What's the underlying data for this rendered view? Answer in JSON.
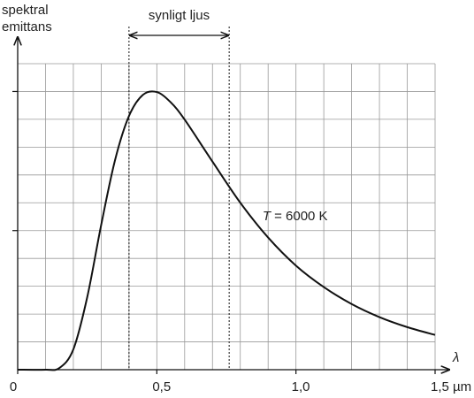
{
  "chart_data": {
    "type": "line",
    "ylabel": [
      "spektral",
      "emittans"
    ],
    "xlabel": "λ",
    "band_label": "synligt ljus",
    "band": [
      0.4,
      0.76
    ],
    "annotation": {
      "symbol": "T",
      "text": "= 6000 K",
      "x": 0.88,
      "y": 5.5
    },
    "x": [
      0,
      0.1,
      0.15,
      0.2,
      0.25,
      0.3,
      0.35,
      0.4,
      0.45,
      0.5,
      0.55,
      0.6,
      0.7,
      0.8,
      0.9,
      1.0,
      1.1,
      1.2,
      1.3,
      1.4,
      1.5
    ],
    "series": [
      {
        "name": "T = 6000 K",
        "color": "#111111",
        "values": [
          0,
          0,
          0.06,
          0.73,
          2.61,
          5.2,
          7.54,
          9.12,
          9.88,
          9.98,
          9.61,
          8.99,
          7.48,
          6.0,
          4.75,
          3.74,
          2.97,
          2.36,
          1.89,
          1.53,
          1.25
        ]
      }
    ],
    "xlim": [
      0,
      1.5
    ],
    "ylim": [
      0,
      11
    ],
    "xticks": [
      0,
      {
        "value": 0.5,
        "label": "0,5"
      },
      {
        "value": 1.0,
        "label": "1,0"
      },
      {
        "value": 1.5,
        "label": "1,5 µm"
      }
    ],
    "yticks": [
      5,
      10
    ],
    "xgrid": [
      0.1,
      0.2,
      0.3,
      0.4,
      0.5,
      0.6,
      0.7,
      0.8,
      0.9,
      1.0,
      1.1,
      1.2,
      1.3,
      1.4,
      1.5
    ],
    "ygrid": [
      1,
      2,
      3,
      4,
      5,
      6,
      7,
      8,
      9,
      10,
      11
    ],
    "grid": true
  }
}
